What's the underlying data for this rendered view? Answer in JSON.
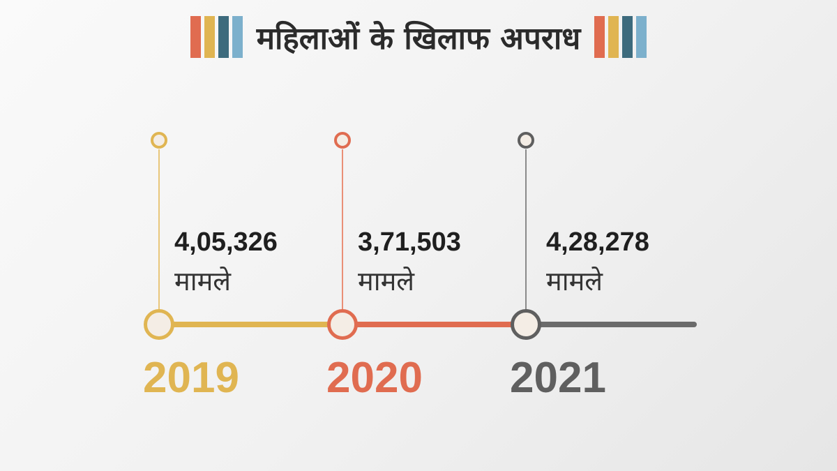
{
  "title": "महिलाओं के खिलाफ अपराध",
  "stripe_colors": [
    "#e06c50",
    "#e0b552",
    "#3d6b7d",
    "#7cb0cc"
  ],
  "years": [
    {
      "year": "2019",
      "count": "4,05,326",
      "unit": "मामले",
      "color": "#e0b552"
    },
    {
      "year": "2020",
      "count": "3,71,503",
      "unit": "मामले",
      "color": "#e06c50"
    },
    {
      "year": "2021",
      "count": "4,28,278",
      "unit": "मामले",
      "color": "#5f5f5f"
    }
  ]
}
